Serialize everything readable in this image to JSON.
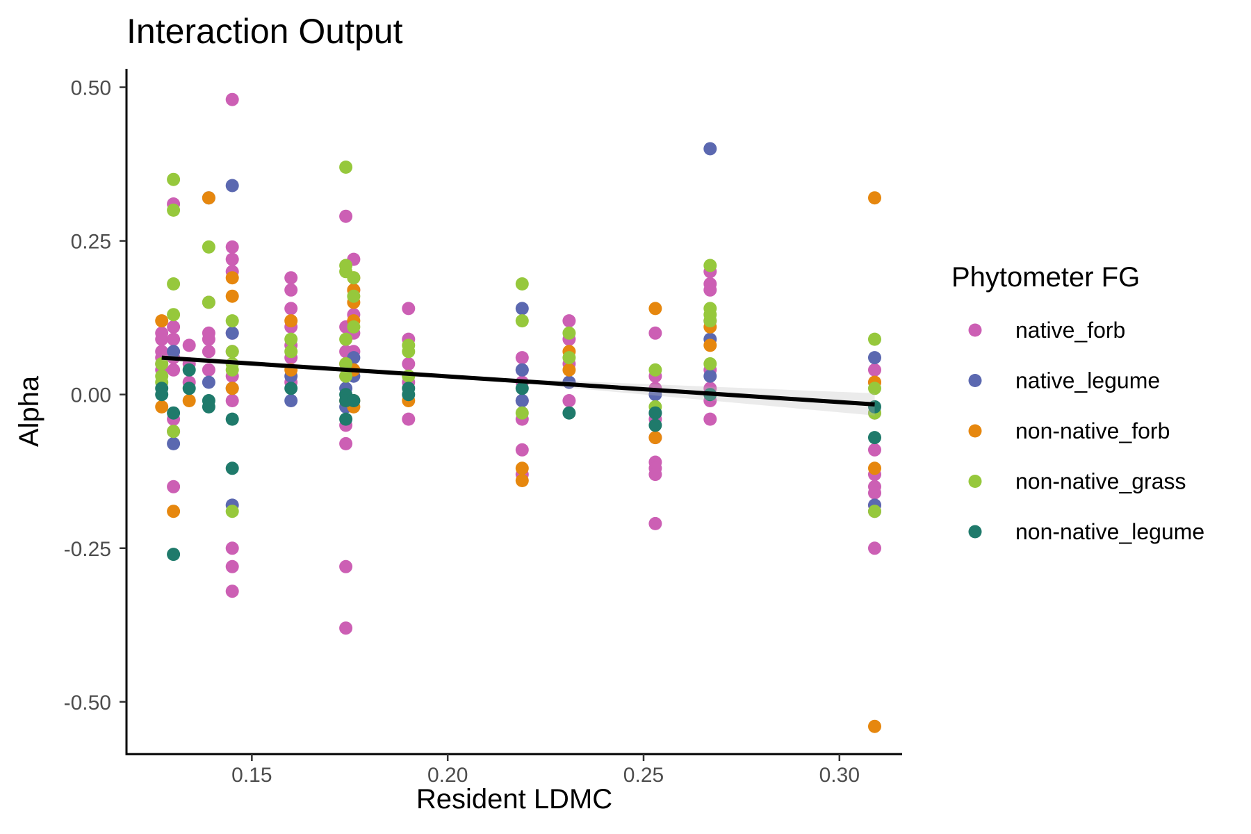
{
  "chart_data": {
    "type": "scatter",
    "title": "Interaction Output",
    "xlabel": "Resident LDMC",
    "ylabel": "Alpha",
    "xlim": [
      0.118,
      0.316
    ],
    "ylim": [
      -0.585,
      0.53
    ],
    "xticks": [
      0.15,
      0.2,
      0.25,
      0.3
    ],
    "xtick_labels": [
      "0.15",
      "0.20",
      "0.25",
      "0.30"
    ],
    "yticks": [
      0.5,
      0.25,
      0.0,
      -0.25,
      -0.5
    ],
    "ytick_labels": [
      "0.50",
      "0.25",
      "0.00",
      "-0.25",
      "-0.50"
    ],
    "grid": false,
    "legend": {
      "title": "Phytometer FG",
      "position": "right"
    },
    "series": [
      {
        "name": "native_forb",
        "color": "#cc5fb4",
        "points": [
          [
            0.127,
            0.1
          ],
          [
            0.127,
            0.09
          ],
          [
            0.127,
            0.07
          ],
          [
            0.127,
            0.06
          ],
          [
            0.127,
            0.05
          ],
          [
            0.127,
            0.04
          ],
          [
            0.13,
            0.31
          ],
          [
            0.13,
            0.11
          ],
          [
            0.13,
            0.09
          ],
          [
            0.13,
            0.06
          ],
          [
            0.13,
            0.04
          ],
          [
            0.13,
            -0.04
          ],
          [
            0.13,
            -0.06
          ],
          [
            0.13,
            -0.15
          ],
          [
            0.134,
            0.08
          ],
          [
            0.134,
            0.05
          ],
          [
            0.134,
            0.02
          ],
          [
            0.139,
            0.15
          ],
          [
            0.139,
            0.1
          ],
          [
            0.139,
            0.09
          ],
          [
            0.139,
            0.07
          ],
          [
            0.139,
            0.04
          ],
          [
            0.145,
            0.48
          ],
          [
            0.145,
            0.24
          ],
          [
            0.145,
            0.22
          ],
          [
            0.145,
            0.2
          ],
          [
            0.145,
            0.1
          ],
          [
            0.145,
            0.07
          ],
          [
            0.145,
            0.03
          ],
          [
            0.145,
            -0.01
          ],
          [
            0.145,
            -0.25
          ],
          [
            0.145,
            -0.28
          ],
          [
            0.145,
            -0.32
          ],
          [
            0.16,
            0.19
          ],
          [
            0.16,
            0.17
          ],
          [
            0.16,
            0.14
          ],
          [
            0.16,
            0.11
          ],
          [
            0.16,
            0.08
          ],
          [
            0.16,
            0.06
          ],
          [
            0.16,
            0.02
          ],
          [
            0.174,
            0.29
          ],
          [
            0.174,
            0.11
          ],
          [
            0.174,
            0.07
          ],
          [
            0.174,
            0.03
          ],
          [
            0.174,
            -0.05
          ],
          [
            0.174,
            -0.08
          ],
          [
            0.174,
            -0.28
          ],
          [
            0.174,
            -0.38
          ],
          [
            0.176,
            0.22
          ],
          [
            0.176,
            0.17
          ],
          [
            0.176,
            0.13
          ],
          [
            0.176,
            0.1
          ],
          [
            0.176,
            0.07
          ],
          [
            0.176,
            0.04
          ],
          [
            0.19,
            0.14
          ],
          [
            0.19,
            0.09
          ],
          [
            0.19,
            0.05
          ],
          [
            0.19,
            0.02
          ],
          [
            0.19,
            -0.04
          ],
          [
            0.219,
            0.06
          ],
          [
            0.219,
            0.04
          ],
          [
            0.219,
            0.02
          ],
          [
            0.219,
            -0.01
          ],
          [
            0.219,
            -0.04
          ],
          [
            0.219,
            -0.09
          ],
          [
            0.219,
            -0.13
          ],
          [
            0.231,
            0.12
          ],
          [
            0.231,
            0.09
          ],
          [
            0.231,
            0.05
          ],
          [
            0.231,
            0.02
          ],
          [
            0.231,
            -0.01
          ],
          [
            0.253,
            0.1
          ],
          [
            0.253,
            0.03
          ],
          [
            0.253,
            0.01
          ],
          [
            0.253,
            -0.04
          ],
          [
            0.253,
            -0.07
          ],
          [
            0.253,
            -0.11
          ],
          [
            0.253,
            -0.12
          ],
          [
            0.253,
            -0.13
          ],
          [
            0.253,
            -0.21
          ],
          [
            0.267,
            0.2
          ],
          [
            0.267,
            0.18
          ],
          [
            0.267,
            0.17
          ],
          [
            0.267,
            0.12
          ],
          [
            0.267,
            0.04
          ],
          [
            0.267,
            0.01
          ],
          [
            0.267,
            -0.01
          ],
          [
            0.267,
            -0.04
          ],
          [
            0.309,
            0.04
          ],
          [
            0.309,
            0.02
          ],
          [
            0.309,
            -0.03
          ],
          [
            0.309,
            -0.09
          ],
          [
            0.309,
            -0.13
          ],
          [
            0.309,
            -0.15
          ],
          [
            0.309,
            -0.16
          ],
          [
            0.309,
            -0.18
          ],
          [
            0.309,
            -0.19
          ],
          [
            0.309,
            -0.25
          ]
        ]
      },
      {
        "name": "native_legume",
        "color": "#5b68b0",
        "points": [
          [
            0.13,
            0.07
          ],
          [
            0.13,
            -0.08
          ],
          [
            0.139,
            0.32
          ],
          [
            0.139,
            0.02
          ],
          [
            0.145,
            0.34
          ],
          [
            0.145,
            0.1
          ],
          [
            0.145,
            0.01
          ],
          [
            0.145,
            -0.18
          ],
          [
            0.16,
            0.03
          ],
          [
            0.16,
            -0.01
          ],
          [
            0.174,
            0.01
          ],
          [
            0.174,
            -0.02
          ],
          [
            0.176,
            0.06
          ],
          [
            0.176,
            0.03
          ],
          [
            0.219,
            0.14
          ],
          [
            0.219,
            0.04
          ],
          [
            0.219,
            -0.01
          ],
          [
            0.231,
            0.02
          ],
          [
            0.253,
            0.0
          ],
          [
            0.253,
            -0.03
          ],
          [
            0.267,
            0.4
          ],
          [
            0.267,
            0.09
          ],
          [
            0.267,
            0.03
          ],
          [
            0.309,
            0.06
          ],
          [
            0.309,
            -0.18
          ]
        ]
      },
      {
        "name": "non-native_forb",
        "color": "#e6870e",
        "points": [
          [
            0.127,
            0.12
          ],
          [
            0.127,
            -0.02
          ],
          [
            0.13,
            -0.19
          ],
          [
            0.134,
            -0.01
          ],
          [
            0.139,
            0.32
          ],
          [
            0.145,
            0.19
          ],
          [
            0.145,
            0.16
          ],
          [
            0.145,
            0.01
          ],
          [
            0.16,
            0.12
          ],
          [
            0.16,
            0.04
          ],
          [
            0.174,
            0.05
          ],
          [
            0.174,
            -0.01
          ],
          [
            0.176,
            0.19
          ],
          [
            0.176,
            0.17
          ],
          [
            0.176,
            0.15
          ],
          [
            0.176,
            0.12
          ],
          [
            0.176,
            0.04
          ],
          [
            0.176,
            -0.01
          ],
          [
            0.176,
            -0.02
          ],
          [
            0.19,
            -0.01
          ],
          [
            0.219,
            -0.12
          ],
          [
            0.219,
            -0.14
          ],
          [
            0.231,
            0.07
          ],
          [
            0.231,
            0.04
          ],
          [
            0.253,
            0.14
          ],
          [
            0.253,
            -0.07
          ],
          [
            0.267,
            0.11
          ],
          [
            0.267,
            0.08
          ],
          [
            0.309,
            0.32
          ],
          [
            0.309,
            0.02
          ],
          [
            0.309,
            -0.12
          ],
          [
            0.309,
            -0.54
          ]
        ]
      },
      {
        "name": "non-native_grass",
        "color": "#96c83c",
        "points": [
          [
            0.127,
            0.05
          ],
          [
            0.127,
            0.03
          ],
          [
            0.127,
            0.02
          ],
          [
            0.13,
            0.35
          ],
          [
            0.13,
            0.3
          ],
          [
            0.13,
            0.18
          ],
          [
            0.13,
            0.13
          ],
          [
            0.13,
            -0.06
          ],
          [
            0.139,
            0.24
          ],
          [
            0.139,
            0.15
          ],
          [
            0.145,
            0.12
          ],
          [
            0.145,
            0.07
          ],
          [
            0.145,
            0.05
          ],
          [
            0.145,
            0.04
          ],
          [
            0.145,
            -0.19
          ],
          [
            0.16,
            0.09
          ],
          [
            0.16,
            0.07
          ],
          [
            0.174,
            0.37
          ],
          [
            0.174,
            0.21
          ],
          [
            0.174,
            0.2
          ],
          [
            0.174,
            0.09
          ],
          [
            0.174,
            0.05
          ],
          [
            0.174,
            0.03
          ],
          [
            0.176,
            0.19
          ],
          [
            0.176,
            0.16
          ],
          [
            0.176,
            0.11
          ],
          [
            0.19,
            0.08
          ],
          [
            0.19,
            0.07
          ],
          [
            0.19,
            0.03
          ],
          [
            0.219,
            0.18
          ],
          [
            0.219,
            0.12
          ],
          [
            0.219,
            -0.03
          ],
          [
            0.231,
            0.1
          ],
          [
            0.231,
            0.06
          ],
          [
            0.253,
            0.04
          ],
          [
            0.253,
            -0.02
          ],
          [
            0.267,
            0.21
          ],
          [
            0.267,
            0.14
          ],
          [
            0.267,
            0.13
          ],
          [
            0.267,
            0.12
          ],
          [
            0.267,
            0.05
          ],
          [
            0.309,
            0.09
          ],
          [
            0.309,
            0.01
          ],
          [
            0.309,
            -0.03
          ],
          [
            0.309,
            -0.19
          ]
        ]
      },
      {
        "name": "non-native_legume",
        "color": "#1f7a6b",
        "points": [
          [
            0.127,
            0.01
          ],
          [
            0.127,
            0.0
          ],
          [
            0.13,
            -0.03
          ],
          [
            0.13,
            -0.26
          ],
          [
            0.134,
            0.01
          ],
          [
            0.134,
            0.04
          ],
          [
            0.139,
            -0.01
          ],
          [
            0.139,
            -0.02
          ],
          [
            0.145,
            -0.04
          ],
          [
            0.145,
            -0.12
          ],
          [
            0.16,
            0.01
          ],
          [
            0.174,
            0.0
          ],
          [
            0.174,
            -0.01
          ],
          [
            0.174,
            -0.04
          ],
          [
            0.176,
            -0.01
          ],
          [
            0.19,
            0.01
          ],
          [
            0.19,
            0.0
          ],
          [
            0.219,
            0.01
          ],
          [
            0.231,
            -0.03
          ],
          [
            0.253,
            -0.03
          ],
          [
            0.253,
            -0.05
          ],
          [
            0.267,
            0.0
          ],
          [
            0.309,
            -0.02
          ],
          [
            0.309,
            -0.07
          ]
        ]
      }
    ],
    "trend_line": {
      "color": "#000000",
      "x": [
        0.127,
        0.309
      ],
      "y": [
        0.06,
        -0.016
      ]
    }
  }
}
